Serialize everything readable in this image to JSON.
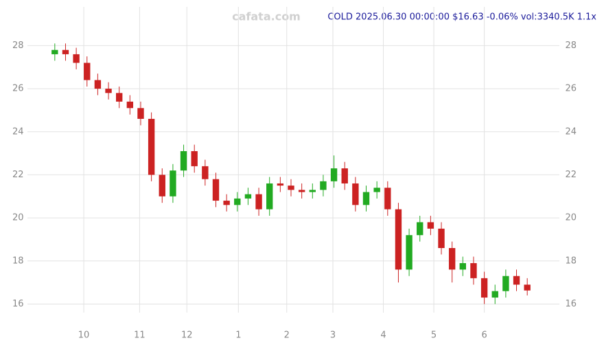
{
  "chart_data": {
    "type": "candlestick",
    "title": "COLD 2025.06.30 00:00:00 $16.63 -0.06% vol:3340.5K 1.1x",
    "watermark": "cafata.com",
    "open": [
      27.6,
      27.8,
      27.6,
      27.2,
      26.4,
      26.0,
      25.8,
      25.4,
      25.1,
      24.6,
      22.0,
      21.0,
      22.2,
      23.1,
      22.4,
      21.8,
      20.8,
      20.6,
      20.9,
      21.1,
      20.4,
      21.6,
      21.5,
      21.3,
      21.2,
      21.3,
      21.7,
      22.3,
      21.6,
      20.6,
      21.2,
      21.4,
      20.4,
      17.6,
      19.2,
      19.8,
      19.5,
      18.6,
      17.6,
      17.9,
      17.2,
      16.3,
      16.6,
      17.3,
      16.9
    ],
    "high": [
      28.1,
      28.1,
      27.9,
      27.5,
      26.7,
      26.3,
      26.1,
      25.7,
      25.4,
      24.9,
      22.3,
      22.5,
      23.4,
      23.4,
      22.7,
      22.1,
      21.1,
      21.2,
      21.4,
      21.4,
      21.9,
      21.9,
      21.8,
      21.6,
      21.6,
      22.0,
      22.9,
      22.6,
      21.9,
      21.5,
      21.7,
      21.7,
      20.7,
      19.5,
      20.1,
      20.1,
      19.8,
      18.9,
      18.2,
      18.2,
      17.5,
      16.9,
      17.6,
      17.6,
      17.2
    ],
    "low": [
      27.3,
      27.3,
      26.9,
      26.1,
      25.7,
      25.5,
      25.1,
      24.8,
      24.3,
      21.7,
      20.7,
      20.7,
      21.9,
      22.1,
      21.5,
      20.5,
      20.3,
      20.3,
      20.6,
      20.1,
      20.1,
      21.2,
      21.0,
      20.9,
      20.9,
      21.0,
      21.4,
      21.3,
      20.3,
      20.3,
      20.9,
      20.1,
      17.0,
      17.3,
      18.9,
      19.2,
      18.3,
      17.0,
      17.3,
      16.9,
      16.0,
      16.0,
      16.3,
      16.6,
      16.4
    ],
    "close": [
      27.8,
      27.6,
      27.2,
      26.4,
      26.0,
      25.8,
      25.4,
      25.1,
      24.6,
      22.0,
      21.0,
      22.2,
      23.1,
      22.4,
      21.8,
      20.8,
      20.6,
      20.9,
      21.1,
      20.4,
      21.6,
      21.5,
      21.3,
      21.2,
      21.3,
      21.7,
      22.3,
      21.6,
      20.6,
      21.2,
      21.4,
      20.4,
      17.6,
      19.2,
      19.8,
      19.5,
      18.6,
      17.6,
      17.9,
      17.2,
      16.3,
      16.6,
      17.3,
      16.9,
      16.63
    ],
    "up_color": "#22aa22",
    "down_color": "#cc2222",
    "xlim": [
      -0.5,
      44.5
    ],
    "xticks": [
      {
        "value": 2.7,
        "label": "10"
      },
      {
        "value": 7.9,
        "label": "11"
      },
      {
        "value": 12.3,
        "label": "12"
      },
      {
        "value": 17.1,
        "label": "1"
      },
      {
        "value": 21.6,
        "label": "2"
      },
      {
        "value": 25.9,
        "label": "3"
      },
      {
        "value": 30.6,
        "label": "4"
      },
      {
        "value": 35.3,
        "label": "5"
      },
      {
        "value": 40.0,
        "label": "6"
      }
    ],
    "ylim": [
      15.6,
      29.8
    ],
    "yticks": [
      16,
      18,
      20,
      22,
      24,
      26,
      28
    ],
    "grid": true
  }
}
